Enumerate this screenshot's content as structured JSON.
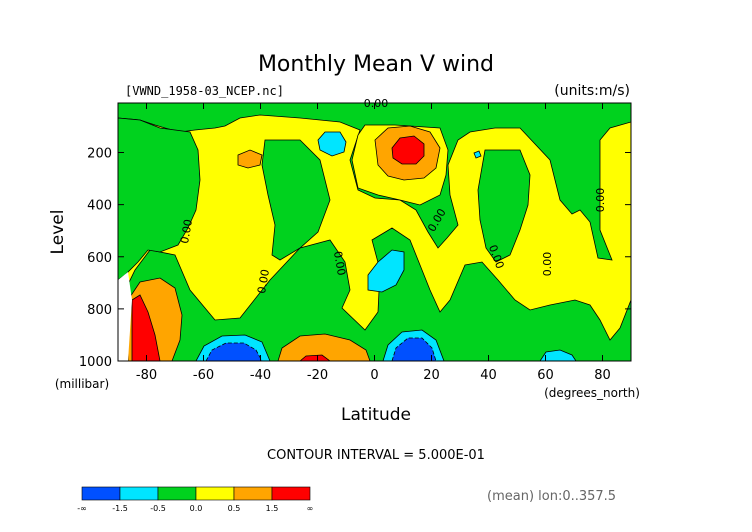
{
  "chart_data": {
    "type": "heatmap",
    "title": "Monthly Mean V wind",
    "dataset_label": "[VWND_1958-03_NCEP.nc]",
    "units_label": "(units:m/s)",
    "xlabel": "Latitude",
    "x_unit_label": "(degrees_north)",
    "ylabel": "Level",
    "y_unit_label": "(millibar)",
    "xlim": [
      -90,
      90
    ],
    "ylim": [
      1000,
      10
    ],
    "x_ticks": [
      -80,
      -60,
      -40,
      -20,
      0,
      20,
      40,
      60,
      80
    ],
    "y_ticks": [
      200,
      400,
      600,
      800,
      1000
    ],
    "contour_interval_text": "CONTOUR INTERVAL = 5.000E-01",
    "contour_labels": [
      "0.00",
      "0.00",
      "0.00",
      "0.00",
      "0.00",
      "0.00",
      "0.00",
      "0.00"
    ],
    "colorbar": {
      "tick_labels": [
        "-∞",
        "-1.5",
        "-0.5",
        "0.0",
        "0.5",
        "1.5",
        "∞"
      ],
      "colors": [
        "#0050ff",
        "#00e5ff",
        "#00d21e",
        "#ffff00",
        "#ffa500",
        "#ff0000"
      ]
    },
    "footnote": "(mean) lon:0..357.5"
  }
}
